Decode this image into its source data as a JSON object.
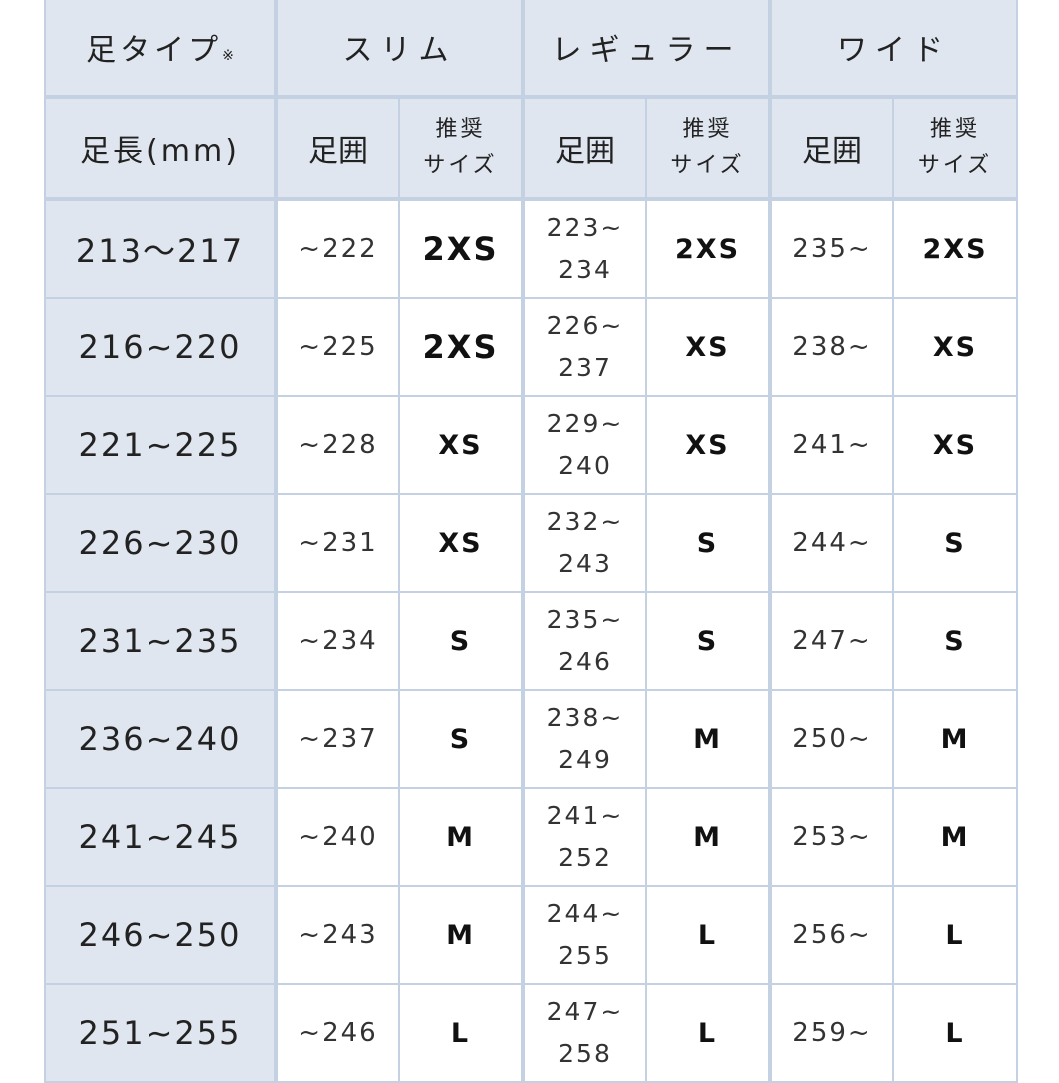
{
  "header": {
    "foot_type_label": "足タイプ",
    "foot_type_note": "※",
    "groups": [
      "スリム",
      "レギュラー",
      "ワイド"
    ],
    "foot_length_label": "足長(mm)",
    "circumference_label": "足囲",
    "recommended_label_1": "推奨",
    "recommended_label_2": "サイズ"
  },
  "rows": [
    {
      "length": "213～217",
      "slim_circ": "~222",
      "slim_size": "2XS",
      "reg_circ_1": "223~",
      "reg_circ_2": "234",
      "reg_size": "2XS",
      "wide_circ": "235~",
      "wide_size": "2XS"
    },
    {
      "length": "216~220",
      "slim_circ": "~225",
      "slim_size": "2XS",
      "reg_circ_1": "226~",
      "reg_circ_2": "237",
      "reg_size": "XS",
      "wide_circ": "238~",
      "wide_size": "XS"
    },
    {
      "length": "221~225",
      "slim_circ": "~228",
      "slim_size": "XS",
      "reg_circ_1": "229~",
      "reg_circ_2": "240",
      "reg_size": "XS",
      "wide_circ": "241~",
      "wide_size": "XS"
    },
    {
      "length": "226~230",
      "slim_circ": "~231",
      "slim_size": "XS",
      "reg_circ_1": "232~",
      "reg_circ_2": "243",
      "reg_size": "S",
      "wide_circ": "244~",
      "wide_size": "S"
    },
    {
      "length": "231~235",
      "slim_circ": "~234",
      "slim_size": "S",
      "reg_circ_1": "235~",
      "reg_circ_2": "246",
      "reg_size": "S",
      "wide_circ": "247~",
      "wide_size": "S"
    },
    {
      "length": "236~240",
      "slim_circ": "~237",
      "slim_size": "S",
      "reg_circ_1": "238~",
      "reg_circ_2": "249",
      "reg_size": "M",
      "wide_circ": "250~",
      "wide_size": "M"
    },
    {
      "length": "241~245",
      "slim_circ": "~240",
      "slim_size": "M",
      "reg_circ_1": "241~",
      "reg_circ_2": "252",
      "reg_size": "M",
      "wide_circ": "253~",
      "wide_size": "M"
    },
    {
      "length": "246~250",
      "slim_circ": "~243",
      "slim_size": "M",
      "reg_circ_1": "244~",
      "reg_circ_2": "255",
      "reg_size": "L",
      "wide_circ": "256~",
      "wide_size": "L"
    },
    {
      "length": "251~255",
      "slim_circ": "~246",
      "slim_size": "L",
      "reg_circ_1": "247~",
      "reg_circ_2": "258",
      "reg_size": "L",
      "wide_circ": "259~",
      "wide_size": "L"
    }
  ]
}
